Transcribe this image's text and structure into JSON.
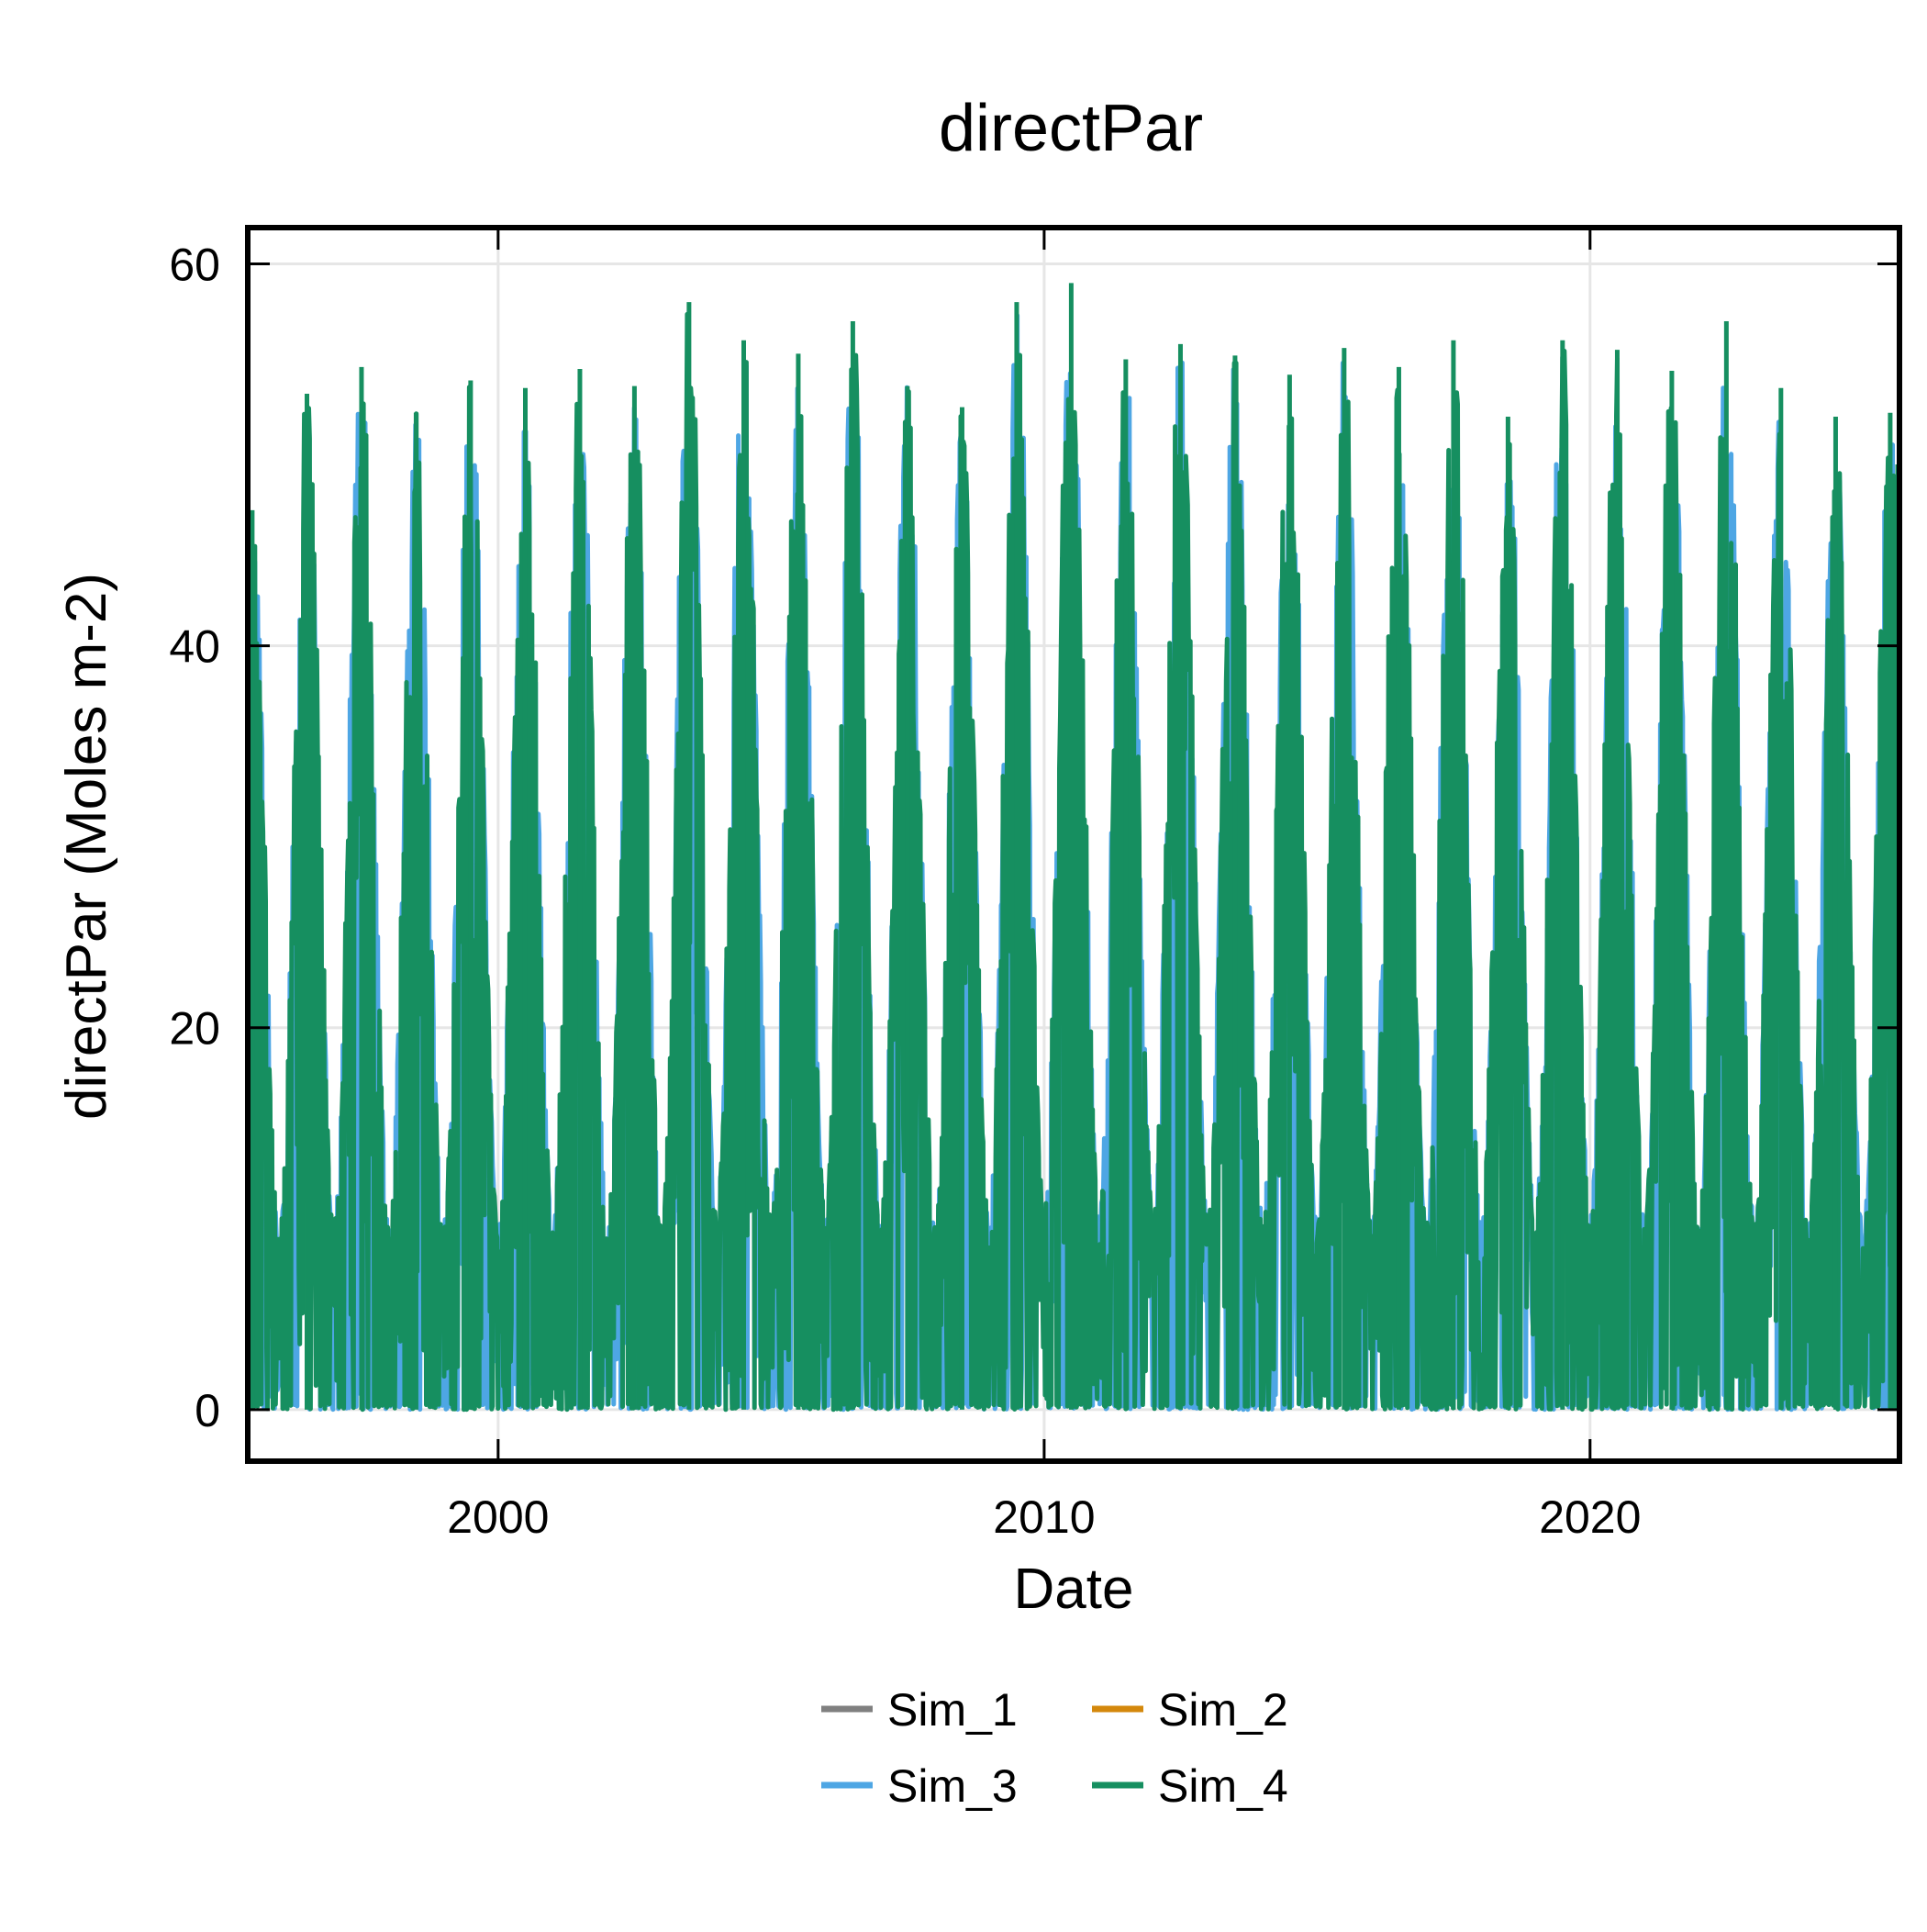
{
  "chart_data": {
    "type": "line",
    "title": "directPar",
    "xlabel": "Date",
    "ylabel": "directPar (Moles m-2)",
    "x_range": [
      "1995-06-01",
      "2025-09-01"
    ],
    "x_ticks": [
      "2000",
      "2010",
      "2020"
    ],
    "y_ticks": [
      "0",
      "20",
      "40",
      "60"
    ],
    "ylim": [
      -2.7,
      61.9
    ],
    "grid": true,
    "legend": {
      "position": "bottom-center",
      "columns": 2,
      "entries": [
        "Sim_1",
        "Sim_2",
        "Sim_3",
        "Sim_4"
      ]
    },
    "series_colors": {
      "Sim_1": "#808080",
      "Sim_2": "#d4880c",
      "Sim_3": "#4ea6e4",
      "Sim_4": "#168f60"
    },
    "drawn_order": [
      "Sim_3",
      "Sim_4"
    ],
    "series": [
      {
        "name": "Sim_4",
        "description_values": "daily values oscillating between 0 and a seasonal envelope",
        "annual_peaks": [
          {
            "date": "1995-07-01",
            "value": 47.1
          },
          {
            "date": "1996-07-01",
            "value": 53.2
          },
          {
            "date": "1997-07-01",
            "value": 54.6
          },
          {
            "date": "1998-07-01",
            "value": 52.2
          },
          {
            "date": "1999-07-01",
            "value": 53.9
          },
          {
            "date": "2000-07-01",
            "value": 53.5
          },
          {
            "date": "2001-07-01",
            "value": 54.5
          },
          {
            "date": "2002-07-01",
            "value": 53.6
          },
          {
            "date": "2003-07-01",
            "value": 58.0
          },
          {
            "date": "2004-07-01",
            "value": 56.0
          },
          {
            "date": "2005-07-01",
            "value": 55.3
          },
          {
            "date": "2006-07-01",
            "value": 57.0
          },
          {
            "date": "2007-07-01",
            "value": 53.6
          },
          {
            "date": "2008-07-01",
            "value": 52.5
          },
          {
            "date": "2009-07-01",
            "value": 58.0
          },
          {
            "date": "2010-07-01",
            "value": 59.0
          },
          {
            "date": "2011-07-01",
            "value": 55.0
          },
          {
            "date": "2012-07-01",
            "value": 55.8
          },
          {
            "date": "2013-07-01",
            "value": 55.2
          },
          {
            "date": "2014-07-01",
            "value": 54.2
          },
          {
            "date": "2015-07-01",
            "value": 55.6
          },
          {
            "date": "2016-07-01",
            "value": 54.6
          },
          {
            "date": "2017-07-01",
            "value": 56.0
          },
          {
            "date": "2018-07-01",
            "value": 52.0
          },
          {
            "date": "2019-07-01",
            "value": 56.0
          },
          {
            "date": "2020-07-01",
            "value": 55.5
          },
          {
            "date": "2021-07-01",
            "value": 54.4
          },
          {
            "date": "2022-07-01",
            "value": 57.0
          },
          {
            "date": "2023-07-01",
            "value": 53.5
          },
          {
            "date": "2024-07-01",
            "value": 52.0
          },
          {
            "date": "2025-07-01",
            "value": 52.2
          }
        ],
        "annual_troughs": [
          {
            "date": "1995-12-21",
            "value": 0
          },
          {
            "date": "1996-12-21",
            "value": 0
          },
          {
            "date": "1997-12-21",
            "value": 0
          },
          {
            "date": "1998-12-21",
            "value": 0
          },
          {
            "date": "1999-12-21",
            "value": 0
          },
          {
            "date": "2000-12-21",
            "value": 0
          },
          {
            "date": "2001-12-21",
            "value": 0
          },
          {
            "date": "2002-12-21",
            "value": 0
          },
          {
            "date": "2003-12-21",
            "value": 0
          },
          {
            "date": "2004-12-21",
            "value": 0
          },
          {
            "date": "2005-12-21",
            "value": 0
          },
          {
            "date": "2006-12-21",
            "value": 0
          },
          {
            "date": "2007-12-21",
            "value": 0
          },
          {
            "date": "2008-12-21",
            "value": 0
          },
          {
            "date": "2009-12-21",
            "value": 0
          },
          {
            "date": "2010-12-21",
            "value": 0
          },
          {
            "date": "2011-12-21",
            "value": 0
          },
          {
            "date": "2012-12-21",
            "value": 0
          },
          {
            "date": "2013-12-21",
            "value": 0
          },
          {
            "date": "2014-12-21",
            "value": 0
          },
          {
            "date": "2015-12-21",
            "value": 0
          },
          {
            "date": "2016-12-21",
            "value": 0
          },
          {
            "date": "2017-12-21",
            "value": 0
          },
          {
            "date": "2018-12-21",
            "value": 0
          },
          {
            "date": "2019-12-21",
            "value": 0
          },
          {
            "date": "2020-12-21",
            "value": 0
          },
          {
            "date": "2021-12-21",
            "value": 0
          },
          {
            "date": "2022-12-21",
            "value": 0
          },
          {
            "date": "2023-12-21",
            "value": 0
          },
          {
            "date": "2024-12-21",
            "value": 0
          }
        ],
        "last_point": {
          "date": "2025-08-20",
          "value": 49.5
        }
      },
      {
        "name": "Sim_3",
        "annual_peaks_same_as": "Sim_4",
        "note": "mostly hidden beneath Sim_4; visible as small blue fringes near 0"
      }
    ]
  }
}
